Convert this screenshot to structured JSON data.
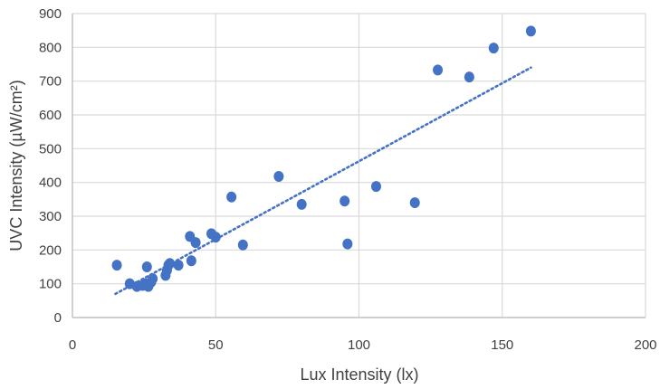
{
  "chart_data": {
    "type": "scatter",
    "xlabel": "Lux Intensity (lx)",
    "ylabel": "UVC Intensity (µW/cm²)",
    "xlim": [
      0,
      200
    ],
    "ylim": [
      0,
      900
    ],
    "xticks": [
      0,
      50,
      100,
      150,
      200
    ],
    "yticks": [
      0,
      100,
      200,
      300,
      400,
      500,
      600,
      700,
      800,
      900
    ],
    "grid": true,
    "legend": "none",
    "marker_color": "#4472C4",
    "trendline": {
      "type": "linear",
      "style": "dotted",
      "color": "#4472C4",
      "x": [
        15,
        160
      ],
      "y": [
        70,
        740
      ]
    },
    "series": [
      {
        "x": [
          15.5,
          20,
          22.5,
          24.5,
          25.5,
          26.5,
          26,
          27.5,
          28,
          32.5,
          33,
          33.5,
          34,
          37,
          41,
          41.5,
          43,
          48.5,
          50,
          55.5,
          59.5,
          72,
          80,
          95,
          96,
          106,
          119.5,
          127.5,
          138.5,
          147,
          160
        ],
        "y": [
          155,
          100,
          92,
          95,
          100,
          92,
          150,
          105,
          115,
          125,
          140,
          155,
          160,
          155,
          240,
          168,
          222,
          248,
          238,
          357,
          215,
          418,
          335,
          345,
          218,
          388,
          340,
          733,
          712,
          798,
          848
        ]
      }
    ]
  }
}
